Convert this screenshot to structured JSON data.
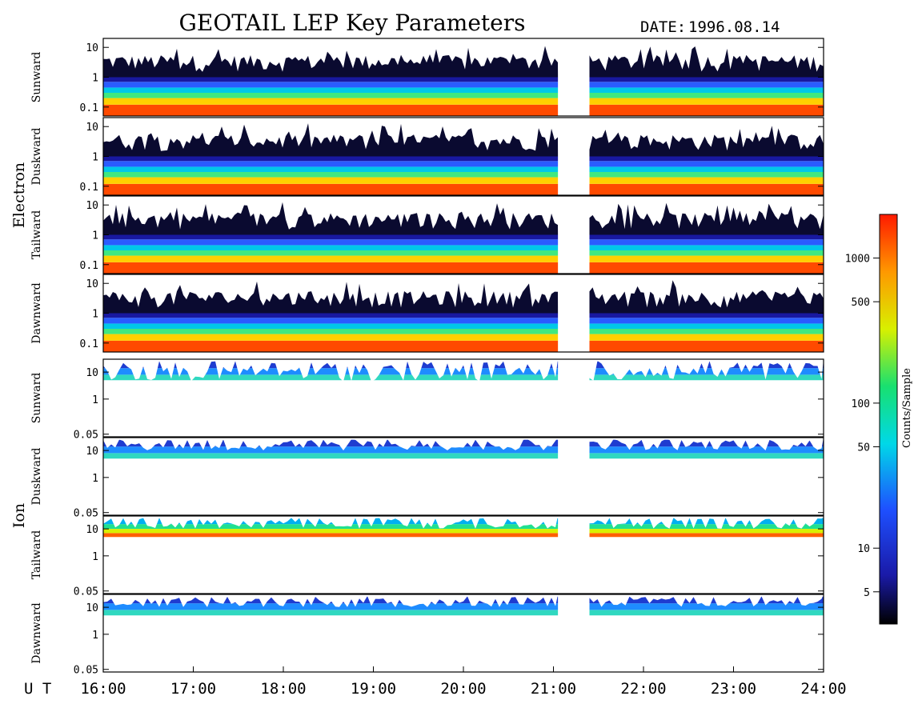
{
  "chart_data": {
    "type": "heatmap",
    "title": "GEOTAIL LEP Key Parameters",
    "date_label": "DATE:",
    "date_value": "1996.08.14",
    "xlabel": "U T",
    "x_range_hours": [
      16,
      24
    ],
    "x_ticks": [
      "16:00",
      "17:00",
      "18:00",
      "19:00",
      "20:00",
      "21:00",
      "22:00",
      "23:00",
      "24:00"
    ],
    "data_gap_hours": [
      21.05,
      21.4
    ],
    "groups": [
      {
        "name": "Electron",
        "y_range": [
          0.05,
          20
        ],
        "y_ticks": [
          "10",
          "1",
          "0.1"
        ],
        "y_tick_values": [
          10,
          1,
          0.1
        ],
        "panels": [
          {
            "name": "Sunward"
          },
          {
            "name": "Duskward"
          },
          {
            "name": "Tailward"
          },
          {
            "name": "Dawnward"
          }
        ]
      },
      {
        "name": "Ion",
        "y_range": [
          0.04,
          30
        ],
        "y_ticks": [
          "10",
          "1",
          "0.05"
        ],
        "y_tick_values": [
          10,
          1,
          0.05
        ],
        "panels": [
          {
            "name": "Sunward"
          },
          {
            "name": "Duskward"
          },
          {
            "name": "Tailward"
          },
          {
            "name": "Dawnward"
          }
        ]
      }
    ],
    "colorbar": {
      "label": "Counts/Sample",
      "scale": "log",
      "range": [
        3,
        2000
      ],
      "ticks": [
        "1000",
        "500",
        "100",
        "50",
        "10",
        "5"
      ],
      "tick_values": [
        1000,
        500,
        100,
        50,
        10,
        5
      ]
    }
  }
}
